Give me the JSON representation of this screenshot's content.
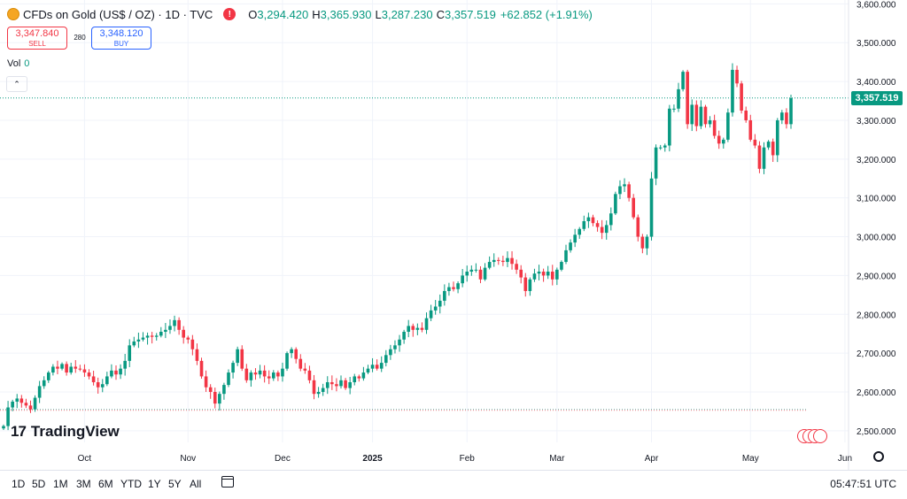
{
  "header": {
    "symbol_title": "CFDs on Gold (US$ / OZ) · 1D · TVC",
    "ohlc": [
      {
        "label": "O",
        "value": "3,294.420"
      },
      {
        "label": "H",
        "value": "3,365.930"
      },
      {
        "label": "L",
        "value": "3,287.230"
      },
      {
        "label": "C",
        "value": "3,357.519"
      }
    ],
    "change": "+62.852 (+1.91%)"
  },
  "trade": {
    "sell_price": "3,347.840",
    "sell_label": "SELL",
    "spread": "280",
    "buy_price": "3,348.120",
    "buy_label": "BUY"
  },
  "volume": {
    "label": "Vol",
    "value": "0"
  },
  "collapse_glyph": "⌃",
  "logo": {
    "mark": "17",
    "text": "TradingView"
  },
  "current_price_tag": "3,357.519",
  "timeframes": [
    "1D",
    "5D",
    "1M",
    "3M",
    "6M",
    "YTD",
    "1Y",
    "5Y",
    "All"
  ],
  "clock": "05:47:51 UTC",
  "colors": {
    "up": "#089981",
    "down": "#f23645",
    "grid": "#f0f3fa"
  },
  "chart_data": {
    "type": "candlestick",
    "title": "CFDs on Gold (US$ / OZ) · 1D · TVC",
    "y_ticks": [
      2500,
      2600,
      2700,
      2800,
      2900,
      3000,
      3100,
      3200,
      3300,
      3400,
      3500,
      3600
    ],
    "y_tick_labels": [
      "2,500.000",
      "2,600.000",
      "2,700.000",
      "2,800.000",
      "2,900.000",
      "3,000.000",
      "3,100.000",
      "3,200.000",
      "3,300.000",
      "3,400.000",
      "3,500.000",
      "3,600.000"
    ],
    "ylim": [
      2470,
      3610
    ],
    "x_labels": [
      "Oct",
      "Nov",
      "Dec",
      "2025",
      "Feb",
      "Mar",
      "Apr",
      "May",
      "Jun"
    ],
    "x_label_index": [
      18,
      41,
      62,
      82,
      103,
      123,
      144,
      166,
      187
    ],
    "current_price": 3357.519,
    "reference_level": 2555,
    "closes": [
      2512,
      2560,
      2575,
      2583,
      2572,
      2565,
      2555,
      2585,
      2615,
      2630,
      2650,
      2665,
      2660,
      2672,
      2650,
      2665,
      2660,
      2658,
      2650,
      2640,
      2625,
      2612,
      2620,
      2640,
      2655,
      2645,
      2660,
      2680,
      2720,
      2730,
      2735,
      2740,
      2745,
      2742,
      2745,
      2755,
      2760,
      2770,
      2785,
      2760,
      2740,
      2735,
      2710,
      2680,
      2640,
      2612,
      2600,
      2570,
      2595,
      2618,
      2650,
      2675,
      2710,
      2660,
      2630,
      2650,
      2645,
      2655,
      2640,
      2635,
      2650,
      2640,
      2660,
      2700,
      2710,
      2685,
      2660,
      2655,
      2630,
      2595,
      2600,
      2610,
      2625,
      2620,
      2615,
      2630,
      2610,
      2625,
      2640,
      2635,
      2650,
      2660,
      2670,
      2660,
      2675,
      2695,
      2710,
      2720,
      2735,
      2755,
      2770,
      2760,
      2765,
      2760,
      2790,
      2810,
      2820,
      2835,
      2860,
      2870,
      2865,
      2880,
      2900,
      2910,
      2915,
      2915,
      2890,
      2920,
      2935,
      2940,
      2938,
      2935,
      2945,
      2930,
      2915,
      2895,
      2860,
      2890,
      2905,
      2910,
      2900,
      2910,
      2890,
      2915,
      2935,
      2965,
      2985,
      3005,
      3020,
      3040,
      3050,
      3035,
      3025,
      3010,
      3030,
      3060,
      3110,
      3130,
      3135,
      3100,
      3050,
      3000,
      2970,
      3000,
      3150,
      3230,
      3230,
      3235,
      3330,
      3330,
      3380,
      3425,
      3290,
      3340,
      3285,
      3335,
      3290,
      3300,
      3260,
      3240,
      3250,
      3320,
      3430,
      3395,
      3325,
      3300,
      3250,
      3235,
      3175,
      3230,
      3245,
      3210,
      3300,
      3320,
      3290,
      3357
    ]
  }
}
